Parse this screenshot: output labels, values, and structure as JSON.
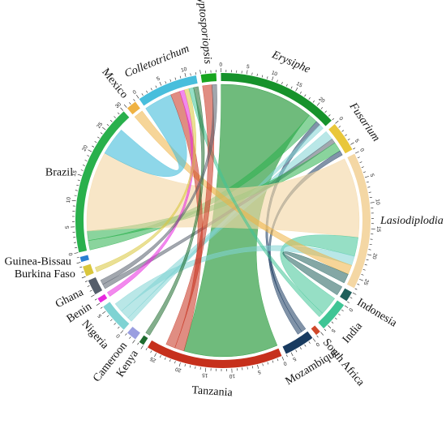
{
  "chart_data": {
    "type": "chord",
    "title": "",
    "sectors": [
      {
        "name": "Erysiphe",
        "italic": true,
        "size": 24,
        "color": "#16922b"
      },
      {
        "name": "Fusarium",
        "italic": true,
        "size": 6,
        "color": "#e9c73a"
      },
      {
        "name": "Lasiodiplodia",
        "italic": true,
        "size": 27,
        "color": "#f4d7a4"
      },
      {
        "name": "Indonesia",
        "italic": false,
        "size": 2,
        "color": "#1f5f5b"
      },
      {
        "name": "India",
        "italic": false,
        "size": 6,
        "color": "#3fc595"
      },
      {
        "name": "South Africa",
        "italic": false,
        "size": 1,
        "color": "#d0482a"
      },
      {
        "name": "Mozambique",
        "italic": false,
        "size": 6,
        "color": "#193b60"
      },
      {
        "name": "Tanzania",
        "italic": false,
        "size": 27,
        "color": "#c6301c"
      },
      {
        "name": "Kenya",
        "italic": false,
        "size": 1,
        "color": "#1e6b2e"
      },
      {
        "name": "Cameroon",
        "italic": false,
        "size": 2,
        "color": "#9a9ee0"
      },
      {
        "name": "Nigeria",
        "italic": false,
        "size": 6,
        "color": "#7fd3d3"
      },
      {
        "name": "Benin",
        "italic": false,
        "size": 1,
        "color": "#e828df"
      },
      {
        "name": "Ghana",
        "italic": false,
        "size": 3,
        "color": "#555e6b"
      },
      {
        "name": "Burkina Faso",
        "italic": false,
        "size": 2,
        "color": "#d9c63c"
      },
      {
        "name": "Guinea-Bissau",
        "italic": false,
        "size": 1,
        "color": "#2a7fd1"
      },
      {
        "name": "Brazil",
        "italic": false,
        "size": 30,
        "color": "#29b04c"
      },
      {
        "name": "Mexico",
        "italic": false,
        "size": 2,
        "color": "#efb243"
      },
      {
        "name": "Colletotrichum",
        "italic": true,
        "size": 12,
        "color": "#48bedc"
      },
      {
        "name": "Cryptosporiopsis",
        "italic": true,
        "size": 3,
        "color": "#18a51f"
      }
    ],
    "links": [
      {
        "from": "Erysiphe",
        "to": "Tanzania",
        "value": 20
      },
      {
        "from": "Erysiphe",
        "to": "Brazil",
        "value": 2
      },
      {
        "from": "Erysiphe",
        "to": "Mozambique",
        "value": 1
      },
      {
        "from": "Erysiphe",
        "to": "Nigeria",
        "value": 1
      },
      {
        "from": "Fusarium",
        "to": "Nigeria",
        "value": 2
      },
      {
        "from": "Fusarium",
        "to": "Ghana",
        "value": 1
      },
      {
        "from": "Fusarium",
        "to": "Brazil",
        "value": 2
      },
      {
        "from": "Fusarium",
        "to": "Mozambique",
        "value": 1
      },
      {
        "from": "Lasiodiplodia",
        "to": "Brazil",
        "value": 17
      },
      {
        "from": "Lasiodiplodia",
        "to": "India",
        "value": 4
      },
      {
        "from": "Lasiodiplodia",
        "to": "Nigeria",
        "value": 2
      },
      {
        "from": "Lasiodiplodia",
        "to": "Mexico",
        "value": 2
      },
      {
        "from": "Lasiodiplodia",
        "to": "Indonesia",
        "value": 2
      },
      {
        "from": "Colletotrichum",
        "to": "Brazil",
        "value": 6
      },
      {
        "from": "Colletotrichum",
        "to": "Tanzania",
        "value": 2
      },
      {
        "from": "Colletotrichum",
        "to": "Benin",
        "value": 1
      },
      {
        "from": "Colletotrichum",
        "to": "Burkina Faso",
        "value": 1
      },
      {
        "from": "Colletotrichum",
        "to": "India",
        "value": 1
      },
      {
        "from": "Colletotrichum",
        "to": "Kenya",
        "value": 1
      },
      {
        "from": "Cryptosporiopsis",
        "to": "Tanzania",
        "value": 2
      },
      {
        "from": "Cryptosporiopsis",
        "to": "Ghana",
        "value": 1
      }
    ]
  }
}
